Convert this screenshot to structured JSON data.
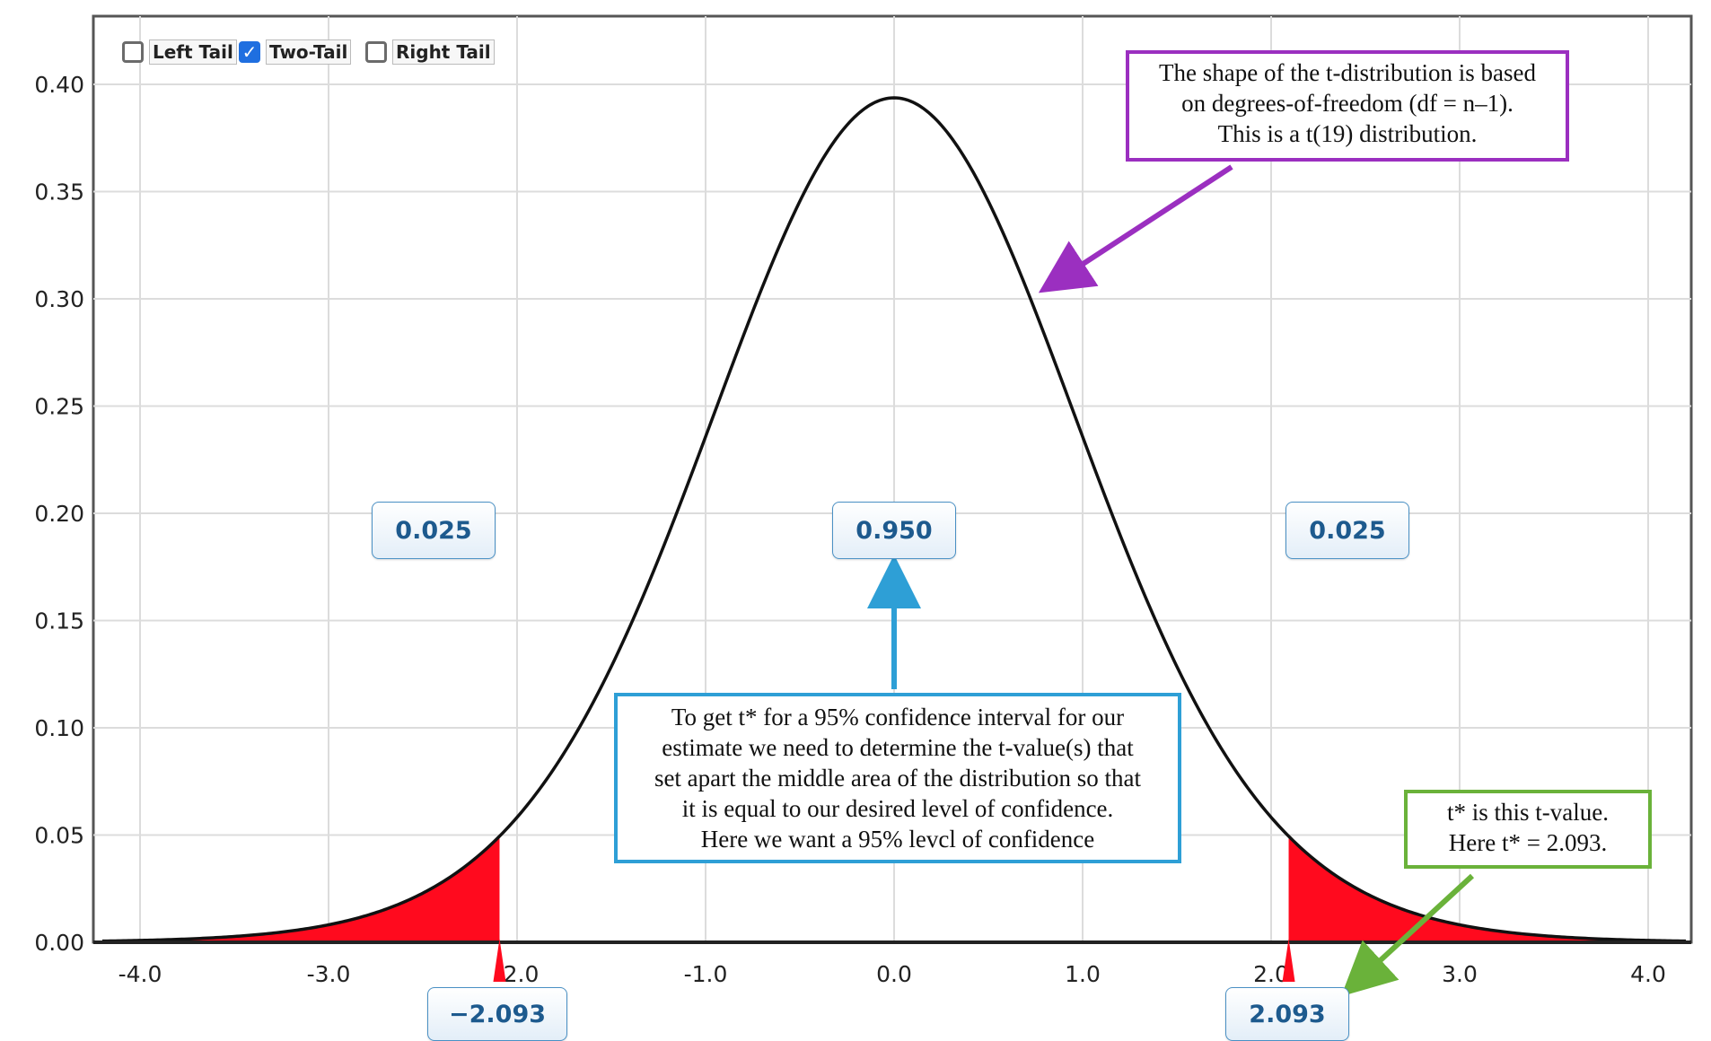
{
  "controls": {
    "left_tail": {
      "label": "Left Tail",
      "checked": false
    },
    "two_tail": {
      "label": "Two-Tail",
      "checked": true
    },
    "right_tail": {
      "label": "Right Tail",
      "checked": false
    }
  },
  "annotations": {
    "df_note": [
      "The shape of the t-distribution is based",
      "on degrees-of-freedom (df = n–1).",
      "This is a t(19) distribution."
    ],
    "ci_note": [
      "To get t* for a 95% confidence interval for our",
      "estimate we need to determine the t-value(s) that",
      "set apart the middle area of the distribution so that",
      "it is equal to our desired level of confidence.",
      "Here we want a 95% levcl of confidence"
    ],
    "tstar_note": [
      "t* is this t-value.",
      "Here t* = 2.093."
    ]
  },
  "colors": {
    "curve": "#111111",
    "tail_fill": "#ff0a1e",
    "purple": "#9b2fc0",
    "blue": "#2e9fd6",
    "green": "#6ab23a"
  },
  "chart_data": {
    "type": "area",
    "distribution": "t",
    "df": 19,
    "xlim": [
      -4.2,
      4.2
    ],
    "ylim": [
      0,
      0.42
    ],
    "x_ticks": [
      "-4.0",
      "-3.0",
      "-2.0",
      "-1.0",
      "0.0",
      "1.0",
      "2.0",
      "3.0",
      "4.0"
    ],
    "x_tick_values": [
      -4,
      -3,
      -2,
      -1,
      0,
      1,
      2,
      3,
      4
    ],
    "y_ticks": [
      "0.00",
      "0.05",
      "0.10",
      "0.15",
      "0.20",
      "0.25",
      "0.30",
      "0.35",
      "0.40"
    ],
    "y_tick_values": [
      0,
      0.05,
      0.1,
      0.15,
      0.2,
      0.25,
      0.3,
      0.35,
      0.4
    ],
    "grid": true,
    "critical_values": {
      "lower": -2.093,
      "upper": 2.093
    },
    "critical_labels": {
      "lower": "−2.093",
      "upper": "2.093"
    },
    "areas": {
      "left": "0.025",
      "middle": "0.950",
      "right": "0.025"
    }
  }
}
